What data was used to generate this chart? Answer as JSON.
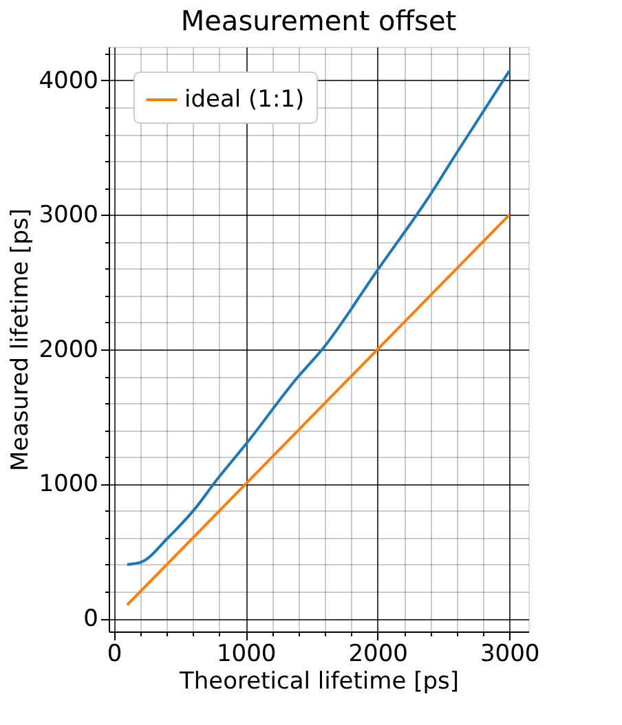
{
  "chart_data": {
    "type": "line",
    "title": "Measurement offset",
    "xlabel": "Theoretical lifetime [ps]",
    "ylabel": "Measured lifetime [ps]",
    "xlim": [
      -40,
      3145
    ],
    "ylim": [
      -97,
      4250
    ],
    "xticks": [
      0,
      {
        "value": 200,
        "label": null
      },
      {
        "value": 400,
        "label": null
      },
      {
        "value": 600,
        "label": null
      },
      {
        "value": 800,
        "label": null
      },
      1000,
      {
        "value": 1200,
        "label": null
      },
      {
        "value": 1400,
        "label": null
      },
      {
        "value": 1600,
        "label": null
      },
      {
        "value": 1800,
        "label": null
      },
      2000,
      {
        "value": 2200,
        "label": null
      },
      {
        "value": 2400,
        "label": null
      },
      {
        "value": 2600,
        "label": null
      },
      {
        "value": 2800,
        "label": null
      },
      3000
    ],
    "yticks": [
      0,
      {
        "value": 200,
        "label": null
      },
      {
        "value": 400,
        "label": null
      },
      {
        "value": 600,
        "label": null
      },
      {
        "value": 800,
        "label": null
      },
      1000,
      {
        "value": 1200,
        "label": null
      },
      {
        "value": 1400,
        "label": null
      },
      {
        "value": 1600,
        "label": null
      },
      {
        "value": 1800,
        "label": null
      },
      2000,
      {
        "value": 2200,
        "label": null
      },
      {
        "value": 2400,
        "label": null
      },
      {
        "value": 2600,
        "label": null
      },
      {
        "value": 2800,
        "label": null
      },
      3000,
      {
        "value": 3200,
        "label": null
      },
      {
        "value": 3400,
        "label": null
      },
      {
        "value": 3600,
        "label": null
      },
      {
        "value": 3800,
        "label": null
      },
      4000,
      {
        "value": 4200,
        "label": null
      }
    ],
    "grid": true,
    "legend": "top left",
    "line_style": "solid",
    "series": [
      {
        "color": "#1f77b4",
        "x": [
          100,
          210,
          410,
          610,
          780,
          1005,
          1400,
          1580,
          2000,
          2400,
          2600,
          3000
        ],
        "values": [
          400,
          420,
          600,
          810,
          1030,
          1300,
          1800,
          2000,
          2590,
          3150,
          3460,
          4070
        ]
      },
      {
        "name": "ideal (1:1)",
        "color": "#ff7f0e",
        "x": [
          100,
          3000
        ],
        "values": [
          100,
          3000
        ]
      }
    ]
  }
}
